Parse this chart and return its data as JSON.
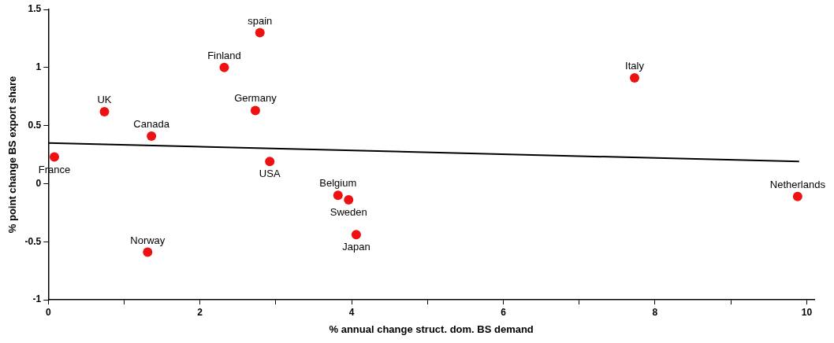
{
  "chart_data": {
    "type": "scatter",
    "xlabel": "% annual change struct. dom. BS demand",
    "ylabel": "% point change BS export share",
    "xlim": [
      0,
      10.1
    ],
    "ylim": [
      -1,
      1.5
    ],
    "xticks": [
      0,
      {
        "value": 1,
        "label": null
      },
      2,
      {
        "value": 3,
        "label": null
      },
      4,
      {
        "value": 5,
        "label": null
      },
      6,
      {
        "value": 7,
        "label": null
      },
      8,
      {
        "value": 9,
        "label": null
      },
      10
    ],
    "yticks": [
      -1,
      -0.5,
      0,
      0.5,
      1,
      1.5
    ],
    "grid": false,
    "legend": false,
    "series": [
      {
        "type": "scatter",
        "marker": "circle",
        "color": "#ee1111",
        "x": [
          0.08,
          0.74,
          1.36,
          1.31,
          2.32,
          2.79,
          2.73,
          2.92,
          3.82,
          3.96,
          4.06,
          7.73,
          9.88
        ],
        "values": [
          0.23,
          0.62,
          0.41,
          -0.59,
          1.0,
          1.3,
          0.63,
          0.19,
          -0.1,
          -0.14,
          -0.44,
          0.91,
          -0.11
        ]
      },
      {
        "type": "line",
        "marker": "none",
        "color": "#000000",
        "x": [
          0,
          9.9
        ],
        "values": [
          0.35,
          0.19
        ]
      }
    ],
    "annotations": [
      {
        "text": "France",
        "x": 0.08,
        "y": 0.23
      },
      {
        "text": "UK",
        "x": 0.74,
        "y": 0.62
      },
      {
        "text": "Canada",
        "x": 1.36,
        "y": 0.41
      },
      {
        "text": "Norway",
        "x": 1.31,
        "y": -0.59
      },
      {
        "text": "Finland",
        "x": 2.32,
        "y": 1.0
      },
      {
        "text": "spain",
        "x": 2.79,
        "y": 1.3
      },
      {
        "text": "Germany",
        "x": 2.73,
        "y": 0.63
      },
      {
        "text": "USA",
        "x": 2.92,
        "y": 0.19
      },
      {
        "text": "Belgium",
        "x": 3.82,
        "y": -0.1
      },
      {
        "text": "Sweden",
        "x": 3.96,
        "y": -0.14
      },
      {
        "text": "Japan",
        "x": 4.06,
        "y": -0.44
      },
      {
        "text": "Italy",
        "x": 7.73,
        "y": 0.91
      },
      {
        "text": "Netherlands",
        "x": 9.88,
        "y": -0.11
      }
    ]
  }
}
